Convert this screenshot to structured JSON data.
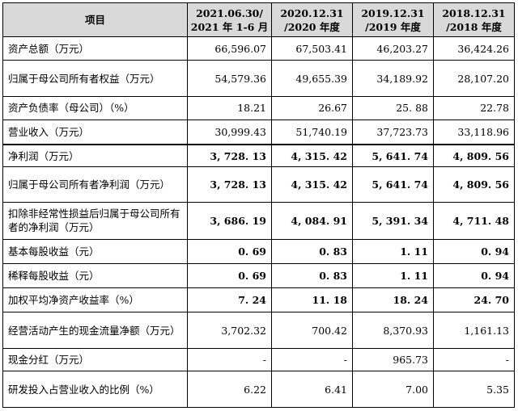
{
  "header": {
    "item": "项目",
    "col1": [
      "2021.06.30/",
      "2021 年 1-6 月"
    ],
    "col2": [
      "2020.12.31",
      "/2020 年度"
    ],
    "col3": [
      "2019.12.31",
      "/2019 年度"
    ],
    "col4": [
      "2018.12.31",
      "/2018 年度"
    ]
  },
  "rows": [
    {
      "label": "资产总额（万元）",
      "values": [
        "66,596.07",
        "67,503.41",
        "46,203.27",
        "36,424.26"
      ]
    },
    {
      "label": "归属于母公司所有者权益（万元）",
      "values": [
        "54,579.36",
        "49,655.39",
        "34,189.92",
        "28,107.20"
      ]
    },
    {
      "label": "资产负债率（母公司）（%）",
      "values": [
        "18.21",
        "26.67",
        "25. 88",
        "22.78"
      ]
    },
    {
      "label": "营业收入（万元）",
      "values": [
        "30,999.43",
        "51,740.19",
        "37,723.73",
        "33,118.96"
      ]
    },
    {
      "label": "净利润（万元）",
      "values": [
        "3, 728. 13",
        "4, 315. 42",
        "5, 641. 74",
        "4, 809. 56"
      ]
    },
    {
      "label": "归属于母公司所有者净利润（万元）",
      "values": [
        "3, 728. 13",
        "4, 315. 42",
        "5, 641. 74",
        "4, 809. 56"
      ]
    },
    {
      "label": "扣除非经常性损益后归属于母公司所有者的净利润（万元）",
      "values": [
        "3, 686. 19",
        "4, 084. 91",
        "5, 391. 34",
        "4, 711. 48"
      ]
    },
    {
      "label": "基本每股收益（元）",
      "values": [
        "0. 69",
        "0. 83",
        "1. 11",
        "0. 94"
      ]
    },
    {
      "label": "稀释每股收益（元）",
      "values": [
        "0. 69",
        "0. 83",
        "1. 11",
        "0. 94"
      ]
    },
    {
      "label": "加权平均净资产收益率（%）",
      "values": [
        "7. 24",
        "11. 18",
        "18. 24",
        "24. 70"
      ]
    },
    {
      "label": "经营活动产生的现金流量净额（万元）",
      "values": [
        "3,702.32",
        "700.42",
        "8,370.93",
        "1,161.13"
      ]
    },
    {
      "label": "现金分红（万元）",
      "values": [
        "-",
        "-",
        "965.73",
        "-"
      ]
    },
    {
      "label": "研发投入占营业收入的比例（%）",
      "values": [
        "6.22",
        "6.41",
        "7.00",
        "5.35"
      ]
    }
  ]
}
